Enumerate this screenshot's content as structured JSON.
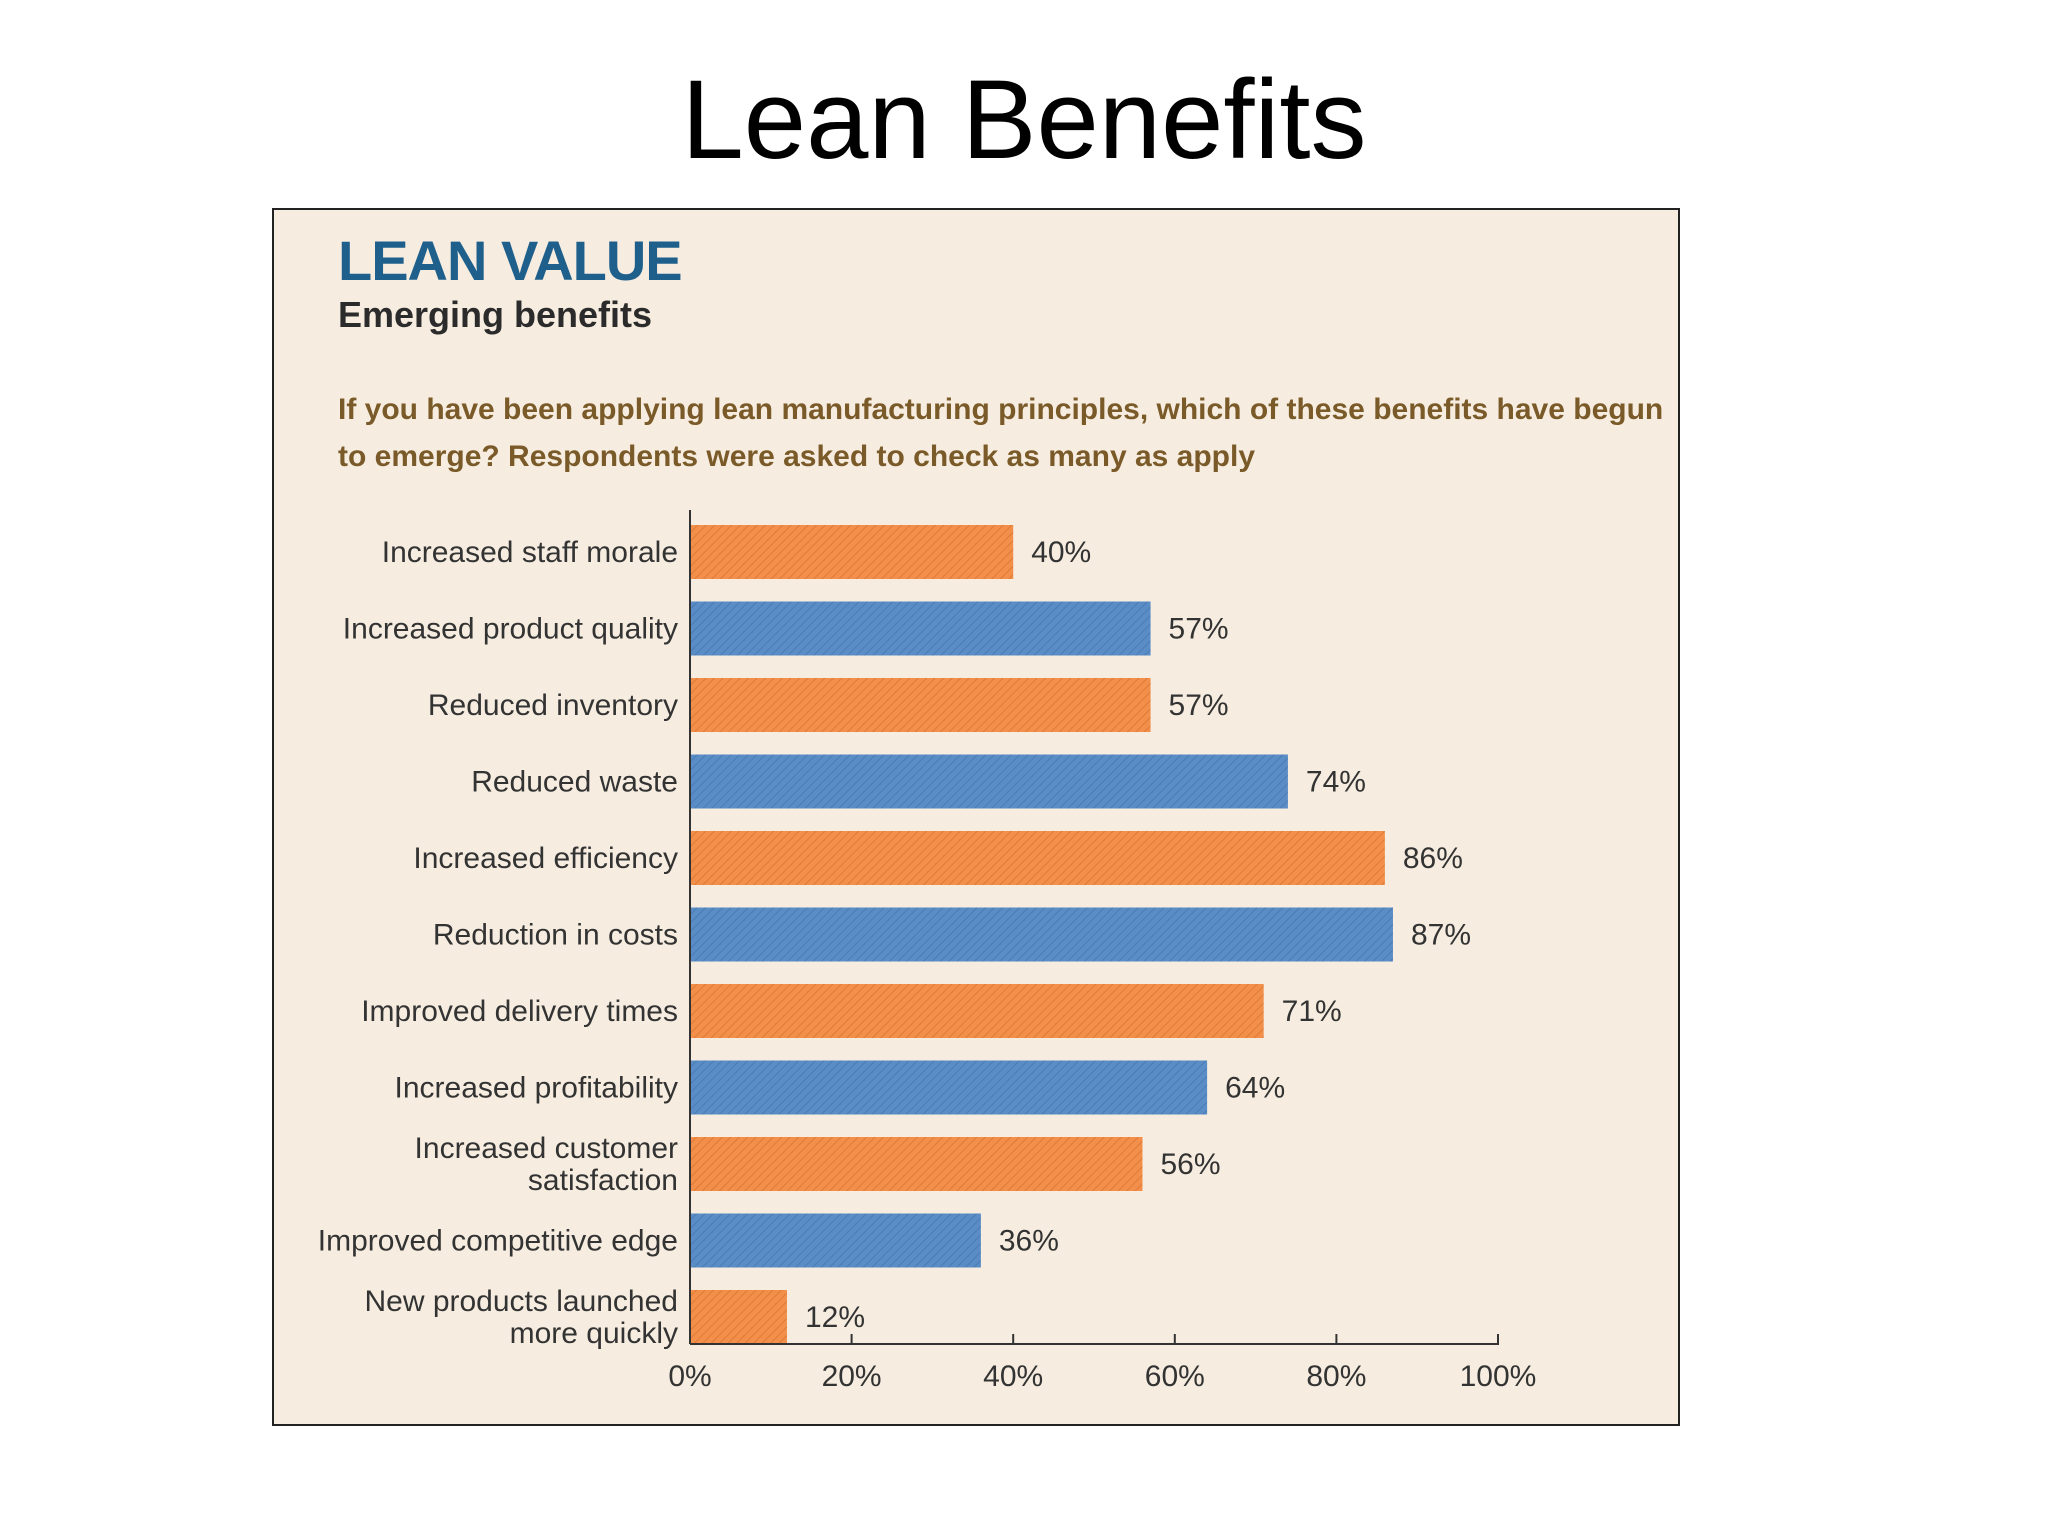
{
  "slide": {
    "title": "Lean Benefits"
  },
  "panel": {
    "title": "LEAN VALUE",
    "subtitle": "Emerging benefits",
    "question": "If you have been applying lean manufacturing principles, which of these benefits have begun to emerge? Respondents were asked to check as many as apply"
  },
  "colors": {
    "orange": "#f28f4a",
    "blue": "#5a8cc6",
    "panel_bg": "#f6ede0",
    "title_blue": "#1f5f8c",
    "question_brown": "#7a5a28"
  },
  "chart_data": {
    "type": "bar",
    "orientation": "horizontal",
    "categories": [
      [
        "Increased staff morale"
      ],
      [
        "Increased product quality"
      ],
      [
        "Reduced inventory"
      ],
      [
        "Reduced waste"
      ],
      [
        "Increased efficiency"
      ],
      [
        "Reduction in costs"
      ],
      [
        "Improved delivery times"
      ],
      [
        "Increased profitability"
      ],
      [
        "Increased customer",
        "satisfaction"
      ],
      [
        "Improved competitive edge"
      ],
      [
        "New products launched",
        "more quickly"
      ]
    ],
    "values": [
      40,
      57,
      57,
      74,
      86,
      87,
      71,
      64,
      56,
      36,
      12
    ],
    "value_labels": [
      "40%",
      "57%",
      "57%",
      "74%",
      "86%",
      "87%",
      "71%",
      "64%",
      "56%",
      "36%",
      "12%"
    ],
    "bar_colors": [
      "orange",
      "blue",
      "orange",
      "blue",
      "orange",
      "blue",
      "orange",
      "blue",
      "orange",
      "blue",
      "orange"
    ],
    "xlim": [
      0,
      100
    ],
    "xticks": [
      0,
      20,
      40,
      60,
      80,
      100
    ],
    "xtick_labels": [
      "0%",
      "20%",
      "40%",
      "60%",
      "80%",
      "100%"
    ],
    "grid": false,
    "legend": "none"
  }
}
